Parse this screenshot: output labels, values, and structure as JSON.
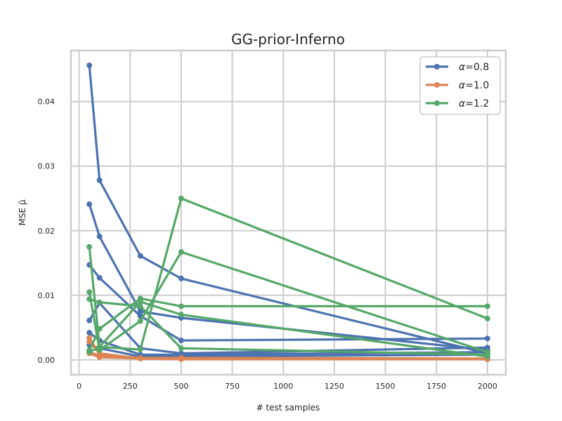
{
  "chart_data": {
    "type": "line",
    "title": "GG-prior-Inferno",
    "xlabel": "# test samples",
    "ylabel": "MSE μ̂",
    "xlim": [
      -40,
      2090
    ],
    "ylim": [
      -0.0023,
      0.0479
    ],
    "xticks": [
      0,
      250,
      500,
      750,
      1000,
      1250,
      1500,
      1750,
      2000
    ],
    "yticks": [
      0.0,
      0.01,
      0.02,
      0.03,
      0.04
    ],
    "ytick_labels": [
      "0.00",
      "0.01",
      "0.02",
      "0.03",
      "0.04"
    ],
    "grid": true,
    "legend_position": "top-right",
    "series": [
      {
        "name": "α=0.8",
        "legend_greek": "α",
        "legend_value": "=0.8",
        "color": "#4c72b0",
        "lines": [
          {
            "x": [
              50,
              100,
              300,
              500,
              2000
            ],
            "y": [
              0.0456,
              0.0278,
              0.0161,
              0.0126,
              0.001
            ]
          },
          {
            "x": [
              50,
              100,
              300,
              500,
              2000
            ],
            "y": [
              0.0241,
              0.0191,
              0.0075,
              0.0065,
              0.0015
            ]
          },
          {
            "x": [
              50,
              100,
              300,
              500,
              2000
            ],
            "y": [
              0.0147,
              0.0127,
              0.0068,
              0.003,
              0.0033
            ]
          },
          {
            "x": [
              50,
              100,
              300,
              500,
              2000
            ],
            "y": [
              0.0061,
              0.0088,
              0.0018,
              0.001,
              0.0019
            ]
          },
          {
            "x": [
              50,
              100,
              300,
              500,
              2000
            ],
            "y": [
              0.0042,
              0.003,
              0.0008,
              0.0008,
              0.0012
            ]
          },
          {
            "x": [
              50,
              100,
              300,
              500,
              2000
            ],
            "y": [
              0.0023,
              0.0018,
              0.0005,
              0.0005,
              0.0008
            ]
          }
        ]
      },
      {
        "name": "α=1.0",
        "legend_greek": "α",
        "legend_value": "=1.0",
        "color": "#dd8452",
        "lines": [
          {
            "x": [
              50,
              100,
              300,
              500,
              2000
            ],
            "y": [
              0.0034,
              0.0008,
              0.0003,
              0.0003,
              0.0002
            ]
          },
          {
            "x": [
              50,
              100,
              300,
              500,
              2000
            ],
            "y": [
              0.0028,
              0.001,
              0.0002,
              0.0002,
              0.0001
            ]
          },
          {
            "x": [
              50,
              100,
              300,
              500,
              2000
            ],
            "y": [
              0.001,
              0.0004,
              0.0002,
              0.0001,
              0.0001
            ]
          },
          {
            "x": [
              50,
              100,
              300,
              500,
              2000
            ],
            "y": [
              0.0012,
              0.0006,
              0.0002,
              0.0002,
              0.0001
            ]
          }
        ]
      },
      {
        "name": "α=1.2",
        "legend_greek": "α",
        "legend_value": "=1.2",
        "color": "#55a868",
        "lines": [
          {
            "x": [
              50,
              100,
              300,
              500,
              2000
            ],
            "y": [
              0.0175,
              0.002,
              0.0016,
              0.025,
              0.0064
            ]
          },
          {
            "x": [
              50,
              100,
              300,
              500,
              2000
            ],
            "y": [
              0.0105,
              0.0015,
              0.006,
              0.0167,
              0.0012
            ]
          },
          {
            "x": [
              50,
              100,
              300,
              500,
              2000
            ],
            "y": [
              0.0094,
              0.0089,
              0.0083,
              0.0018,
              0.0008
            ]
          },
          {
            "x": [
              50,
              100,
              300,
              500,
              2000
            ],
            "y": [
              0.0015,
              0.0048,
              0.0095,
              0.0083,
              0.0083
            ]
          },
          {
            "x": [
              50,
              100,
              300,
              500,
              2000
            ],
            "y": [
              0.0012,
              0.002,
              0.009,
              0.007,
              0.0005
            ]
          }
        ]
      }
    ]
  }
}
